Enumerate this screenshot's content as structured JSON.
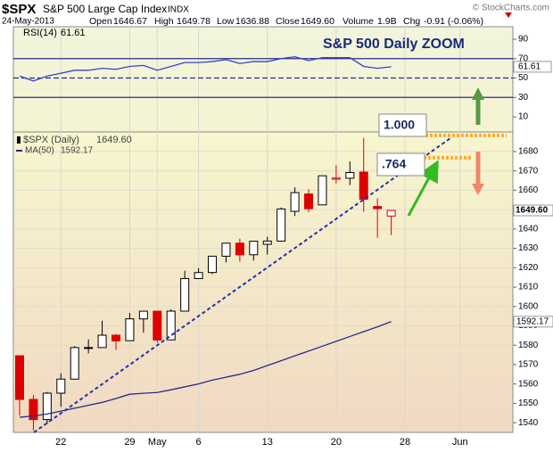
{
  "header": {
    "symbol": "$SPX",
    "name": "S&P 500 Large Cap Index",
    "exchange": "INDX",
    "credit": "© StockCharts.com",
    "date": "24-May-2013",
    "quote": [
      {
        "label": "Open",
        "value": "1646.67"
      },
      {
        "label": "High",
        "value": "1649.78"
      },
      {
        "label": "Low",
        "value": "1636.88"
      },
      {
        "label": "Close",
        "value": "1649.60"
      },
      {
        "label": "Volume",
        "value": "1.9B"
      },
      {
        "label": "Chg",
        "value": "-0.91 (-0.06%)"
      }
    ]
  },
  "chart_data": [
    {
      "type": "line",
      "title": "S&P 500 Daily ZOOM",
      "series": [
        {
          "name": "RSI(14)",
          "color": "#3344cc",
          "values": [
            52,
            47,
            52,
            55,
            58,
            58,
            60,
            59,
            62,
            63,
            58,
            62,
            66,
            66,
            67,
            69,
            65,
            67,
            67,
            70,
            72,
            68,
            71,
            71,
            71,
            62,
            60,
            61.61,
            null,
            null,
            null,
            null,
            null
          ]
        }
      ],
      "ylim": [
        -5.6,
        102.9
      ],
      "yticks": [
        10,
        30,
        50,
        70,
        90
      ],
      "ref_lines": [
        {
          "value": 70,
          "style": "solid"
        },
        {
          "value": 50,
          "style": "dashed"
        },
        {
          "value": 30,
          "style": "solid"
        }
      ]
    },
    {
      "type": "candlestick",
      "categories": [
        null,
        null,
        null,
        "22",
        null,
        null,
        null,
        null,
        "29",
        null,
        "May",
        null,
        null,
        "6",
        null,
        null,
        null,
        null,
        "13",
        null,
        null,
        null,
        null,
        "20",
        null,
        null,
        null,
        null,
        "28",
        null,
        null,
        null,
        "Jun"
      ],
      "series": [
        {
          "name": "$SPX (Daily)",
          "up_color": "#000000",
          "down_color": "#dd0000",
          "open": [
            1574.57,
            1552.03,
            1541.61,
            1555.25,
            1562.5,
            1578.78,
            1578.78,
            1585.16,
            1582.34,
            1593.58,
            1597.55,
            1582.77,
            1597.6,
            1614.4,
            1617.55,
            1625.95,
            1632.69,
            1626.69,
            1632.1,
            1633.75,
            1649.13,
            1658.07,
            1652.45,
            1665.71,
            1666.2,
            1669.39,
            1651.62,
            1646.67,
            null,
            null,
            null,
            null,
            null
          ],
          "high": [
            1574.57,
            1554.38,
            1555.89,
            1565.55,
            1579.58,
            1583.0,
            1592.64,
            1585.78,
            1596.65,
            1597.57,
            1597.55,
            1598.6,
            1618.46,
            1619.77,
            1626.03,
            1632.78,
            1635.01,
            1633.7,
            1636.0,
            1651.1,
            1661.49,
            1660.51,
            1667.47,
            1672.84,
            1674.93,
            1687.18,
            1655.83,
            1649.78,
            null,
            null,
            null,
            null,
            null
          ],
          "low": [
            1543.69,
            1536.03,
            1539.4,
            1548.19,
            1562.5,
            1575.8,
            1578.78,
            1577.56,
            1582.34,
            1586.5,
            1581.28,
            1582.77,
            1597.6,
            1614.21,
            1616.64,
            1622.7,
            1623.09,
            1623.71,
            1626.74,
            1633.75,
            1646.68,
            1648.6,
            1652.45,
            1663.52,
            1662.67,
            1648.86,
            1635.53,
            1636.88,
            null,
            null,
            null,
            null,
            null
          ],
          "close": [
            1552.01,
            1541.61,
            1555.25,
            1562.5,
            1578.78,
            1578.79,
            1585.16,
            1582.24,
            1593.61,
            1597.57,
            1582.7,
            1597.59,
            1614.42,
            1617.5,
            1625.96,
            1632.69,
            1626.67,
            1633.7,
            1633.77,
            1650.34,
            1658.78,
            1650.47,
            1667.47,
            1666.29,
            1669.16,
            1655.35,
            1650.51,
            1649.6,
            null,
            null,
            null,
            null,
            null
          ]
        },
        {
          "name": "MA(50)",
          "color": "#2a2a8a",
          "values": [
            1542.8,
            1543.5,
            1544.5,
            1546.0,
            1547.5,
            1549.0,
            1550.5,
            1552.5,
            1554.7,
            1555.2,
            1555.6,
            1557.0,
            1558.5,
            1560.0,
            1562.0,
            1563.5,
            1565.0,
            1567.0,
            1569.5,
            1572.0,
            1574.5,
            1577.0,
            1579.5,
            1582.0,
            1584.5,
            1587.0,
            1589.5,
            1592.17,
            null,
            null,
            null,
            null,
            null
          ]
        }
      ],
      "ylim": [
        1535,
        1690.1
      ],
      "yticks": [
        1540,
        1550,
        1560,
        1570,
        1580,
        1590,
        1600,
        1610,
        1620,
        1630,
        1640,
        1650,
        1660,
        1670,
        1680
      ],
      "fib_levels": [
        {
          "label": "1.000",
          "value": 1688.3
        },
        {
          "label": ".764",
          "value": 1676.8
        }
      ]
    }
  ]
}
